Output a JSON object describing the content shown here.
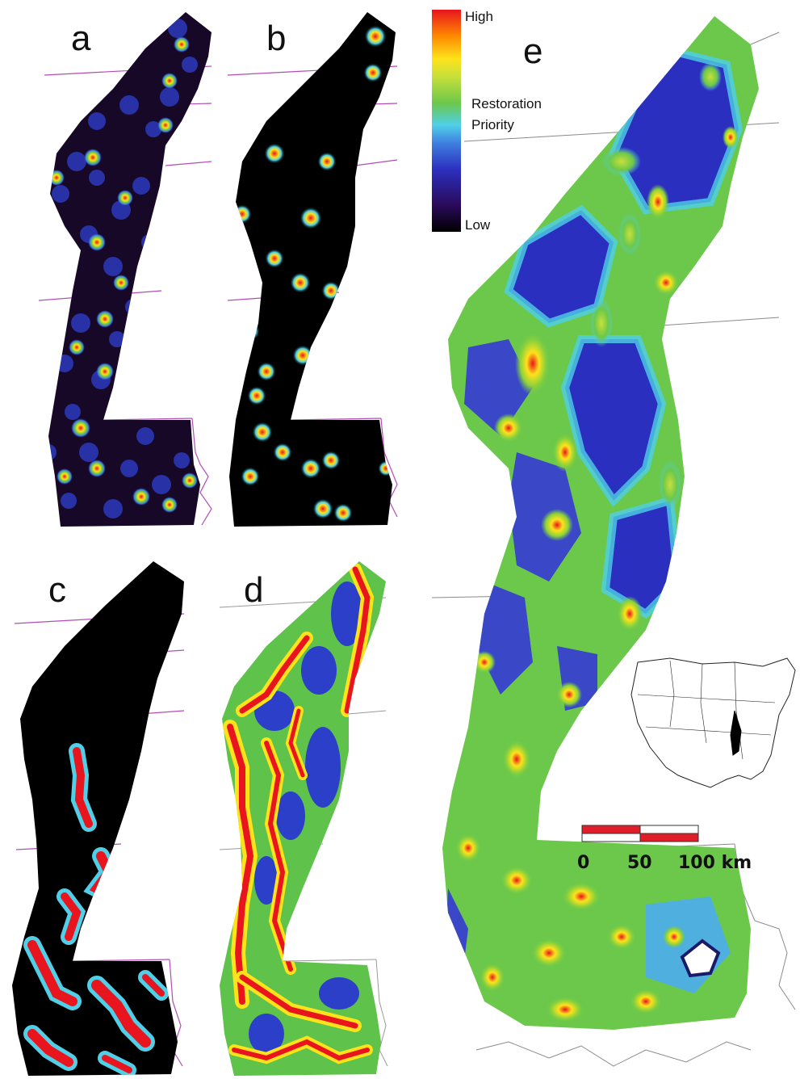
{
  "panels": [
    {
      "label": "a"
    },
    {
      "label": "b"
    },
    {
      "label": "c"
    },
    {
      "label": "d"
    },
    {
      "label": "e"
    }
  ],
  "legend": {
    "high_label": "High",
    "title_line1": "Restoration",
    "title_line2": "Priority",
    "low_label": "Low",
    "colors": [
      "#000000",
      "#2a0a5a",
      "#2b2fbf",
      "#3f7fe0",
      "#4fd0e8",
      "#6cc84a",
      "#c8e03a",
      "#ffe21a",
      "#ff8a00",
      "#e8141e"
    ]
  },
  "scale_bar": {
    "ticks": [
      "0",
      "50",
      "100 km"
    ],
    "bar_color": "#e01e2a"
  },
  "inset_map": {
    "subject": "conterminous United States outline with study region highlighted"
  }
}
